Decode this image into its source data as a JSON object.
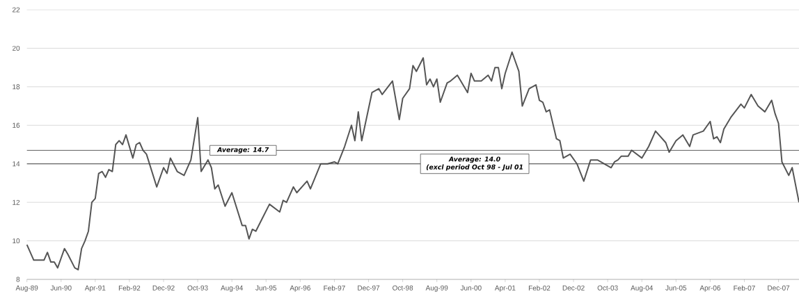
{
  "chart_data": {
    "type": "line",
    "color": "#555555",
    "grid": "y",
    "xlim": [
      "1989-08",
      "2008-06"
    ],
    "ylim": [
      8,
      22
    ],
    "yticks": [
      8,
      10,
      12,
      14,
      16,
      18,
      20,
      22
    ],
    "xticks": [
      {
        "value": "1989-08",
        "label": "Aug-89"
      },
      {
        "value": "1990-06",
        "label": "Jun-90"
      },
      {
        "value": "1991-04",
        "label": "Apr-91"
      },
      {
        "value": "1992-02",
        "label": "Feb-92"
      },
      {
        "value": "1992-12",
        "label": "Dec-92"
      },
      {
        "value": "1993-10",
        "label": "Oct-93"
      },
      {
        "value": "1994-08",
        "label": "Aug-94"
      },
      {
        "value": "1995-06",
        "label": "Jun-95"
      },
      {
        "value": "1996-04",
        "label": "Apr-96"
      },
      {
        "value": "1997-02",
        "label": "Feb-97"
      },
      {
        "value": "1997-12",
        "label": "Dec-97"
      },
      {
        "value": "1998-10",
        "label": "Oct-98"
      },
      {
        "value": "1999-08",
        "label": "Aug-99"
      },
      {
        "value": "2000-06",
        "label": "Jun-00"
      },
      {
        "value": "2001-04",
        "label": "Apr-01"
      },
      {
        "value": "2002-02",
        "label": "Feb-02"
      },
      {
        "value": "2002-12",
        "label": "Dec-02"
      },
      {
        "value": "2003-10",
        "label": "Oct-03"
      },
      {
        "value": "2004-08",
        "label": "Aug-04"
      },
      {
        "value": "2005-06",
        "label": "Jun-05"
      },
      {
        "value": "2006-04",
        "label": "Apr-06"
      },
      {
        "value": "2007-02",
        "label": "Feb-07"
      },
      {
        "value": "2007-12",
        "label": "Dec-07"
      }
    ],
    "x": [
      "1989-08",
      "1989-10",
      "1990-01",
      "1990-02",
      "1990-03",
      "1990-04",
      "1990-05",
      "1990-06",
      "1990-07",
      "1990-08",
      "1990-10",
      "1990-11",
      "1990-12",
      "1991-01",
      "1991-02",
      "1991-03",
      "1991-04",
      "1991-05",
      "1991-06",
      "1991-07",
      "1991-08",
      "1991-09",
      "1991-10",
      "1991-11",
      "1991-12",
      "1992-01",
      "1992-02",
      "1992-03",
      "1992-04",
      "1992-05",
      "1992-06",
      "1992-07",
      "1992-10",
      "1992-12",
      "1993-01",
      "1993-02",
      "1993-04",
      "1993-06",
      "1993-08",
      "1993-10",
      "1993-11",
      "1994-01",
      "1994-02",
      "1994-03",
      "1994-04",
      "1994-06",
      "1994-08",
      "1994-11",
      "1994-12",
      "1995-01",
      "1995-02",
      "1995-03",
      "1995-05",
      "1995-07",
      "1995-10",
      "1995-11",
      "1995-12",
      "1996-02",
      "1996-03",
      "1996-06",
      "1996-07",
      "1996-10",
      "1996-12",
      "1997-02",
      "1997-03",
      "1997-05",
      "1997-07",
      "1997-08",
      "1997-09",
      "1997-10",
      "1998-01",
      "1998-03",
      "1998-04",
      "1998-07",
      "1998-09",
      "1998-10",
      "1998-12",
      "1999-01",
      "1999-02",
      "1999-04",
      "1999-05",
      "1999-06",
      "1999-07",
      "1999-08",
      "1999-09",
      "1999-11",
      "1999-12",
      "2000-02",
      "2000-05",
      "2000-06",
      "2000-07",
      "2000-09",
      "2000-11",
      "2000-12",
      "2001-01",
      "2001-02",
      "2001-03",
      "2001-04",
      "2001-06",
      "2001-08",
      "2001-09",
      "2001-11",
      "2002-01",
      "2002-02",
      "2002-03",
      "2002-04",
      "2002-05",
      "2002-07",
      "2002-08",
      "2002-09",
      "2002-11",
      "2003-01",
      "2003-03",
      "2003-05",
      "2003-07",
      "2003-09",
      "2003-11",
      "2003-12",
      "2004-01",
      "2004-02",
      "2004-04",
      "2004-05",
      "2004-08",
      "2004-10",
      "2004-12",
      "2005-03",
      "2005-04",
      "2005-06",
      "2005-08",
      "2005-10",
      "2005-11",
      "2006-02",
      "2006-04",
      "2006-05",
      "2006-06",
      "2006-07",
      "2006-08",
      "2006-10",
      "2007-01",
      "2007-02",
      "2007-04",
      "2007-06",
      "2007-08",
      "2007-10",
      "2007-11",
      "2007-12",
      "2008-01",
      "2008-03",
      "2008-04",
      "2008-06"
    ],
    "values": [
      9.8,
      9.0,
      9.0,
      9.4,
      8.9,
      8.9,
      8.6,
      9.1,
      9.6,
      9.3,
      8.6,
      8.5,
      9.6,
      10.0,
      10.5,
      12.0,
      12.2,
      13.5,
      13.6,
      13.3,
      13.7,
      13.6,
      15.0,
      15.2,
      15.0,
      15.5,
      14.9,
      14.3,
      15.0,
      15.1,
      14.7,
      14.5,
      12.8,
      13.8,
      13.5,
      14.3,
      13.6,
      13.4,
      14.2,
      16.4,
      13.6,
      14.2,
      13.8,
      12.7,
      12.9,
      11.8,
      12.5,
      10.8,
      10.8,
      10.1,
      10.6,
      10.5,
      11.2,
      11.9,
      11.5,
      12.1,
      12.0,
      12.8,
      12.5,
      13.1,
      12.7,
      14.0,
      14.0,
      14.1,
      14.0,
      14.9,
      16.0,
      15.2,
      16.7,
      15.2,
      17.7,
      17.9,
      17.6,
      18.3,
      16.3,
      17.4,
      17.9,
      19.1,
      18.8,
      19.5,
      18.1,
      18.4,
      18.0,
      18.4,
      17.2,
      18.2,
      18.3,
      18.6,
      17.7,
      18.7,
      18.3,
      18.3,
      18.6,
      18.3,
      19.0,
      19.0,
      17.9,
      18.7,
      19.8,
      18.8,
      17.0,
      17.9,
      18.1,
      17.3,
      17.2,
      16.7,
      16.8,
      15.3,
      15.2,
      14.3,
      14.5,
      14.0,
      13.1,
      14.2,
      14.2,
      14.0,
      13.8,
      14.1,
      14.2,
      14.4,
      14.4,
      14.7,
      14.3,
      14.9,
      15.7,
      15.1,
      14.6,
      15.2,
      15.5,
      14.9,
      15.5,
      15.7,
      16.2,
      15.3,
      15.4,
      15.1,
      15.8,
      16.4,
      17.1,
      16.9,
      17.6,
      17.0,
      16.7,
      17.3,
      16.6,
      16.1,
      14.1,
      13.4,
      13.8,
      12.0
    ],
    "ref_lines": [
      {
        "axis": "y",
        "value": 14.7,
        "label": "Average: 14.7",
        "color": "#444444"
      },
      {
        "axis": "y",
        "value": 14.0,
        "label": "Average: 14.0",
        "color": "#444444"
      }
    ],
    "annotations": [
      "(excl period Oct 98 - Jul 01"
    ]
  }
}
